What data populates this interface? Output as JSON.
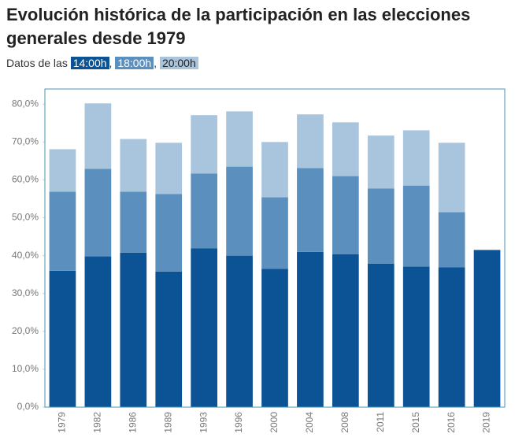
{
  "chart_data": {
    "type": "stacked_bar",
    "title": "Evolución histórica de la participación en las elecciones generales desde 1979",
    "subtitle": "Datos de las",
    "legend_separator": ",",
    "categories": [
      "1979",
      "1982",
      "1986",
      "1989",
      "1993",
      "1996",
      "2000",
      "2004",
      "2008",
      "2011",
      "2015",
      "2016",
      "2019"
    ],
    "series": [
      {
        "name": "14:00h",
        "color": "#0b5394",
        "values": [
          36.0,
          39.8,
          40.8,
          35.8,
          41.9,
          40.0,
          36.5,
          41.0,
          40.4,
          37.9,
          37.1,
          36.9,
          41.5
        ]
      },
      {
        "name": "18:00h",
        "color": "#5b8fbe",
        "values": [
          20.9,
          23.1,
          16.1,
          20.5,
          19.8,
          23.5,
          18.9,
          22.1,
          20.6,
          19.8,
          21.4,
          14.6,
          null
        ]
      },
      {
        "name": "20:00h",
        "color": "#a9c5dd",
        "values": [
          11.2,
          17.3,
          13.9,
          13.5,
          15.4,
          14.6,
          14.6,
          14.2,
          14.2,
          14.0,
          14.6,
          18.3,
          null
        ]
      }
    ],
    "ylim": [
      0,
      84
    ],
    "yticks": [
      {
        "value": 0,
        "label": "0,0%"
      },
      {
        "value": 10,
        "label": "10,0%"
      },
      {
        "value": 20,
        "label": "20,0%"
      },
      {
        "value": 30,
        "label": "30,0%"
      },
      {
        "value": 40,
        "label": "40,0%"
      },
      {
        "value": 50,
        "label": "50,0%"
      },
      {
        "value": 60,
        "label": "60,0%"
      },
      {
        "value": 70,
        "label": "70,0%"
      },
      {
        "value": 80,
        "label": "80,0%"
      }
    ],
    "grid": false
  }
}
